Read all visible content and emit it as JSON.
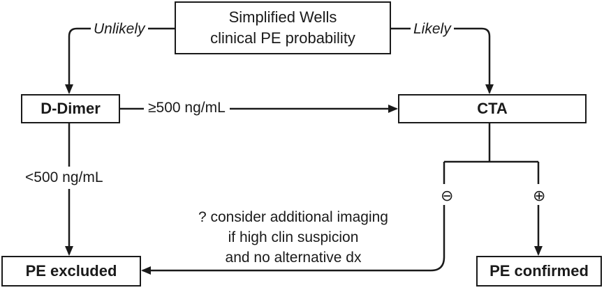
{
  "nodes": {
    "wells": {
      "line1": "Simplified Wells",
      "line2": "clinical PE probability"
    },
    "ddimer": "D-Dimer",
    "cta": "CTA",
    "pe_excluded": "PE excluded",
    "pe_confirmed": "PE confirmed"
  },
  "edges": {
    "unlikely": "Unlikely",
    "likely": "Likely",
    "ddimer_high": "≥500 ng/mL",
    "ddimer_low": "<500 ng/mL",
    "cta_negative": "⊖",
    "cta_positive": "⊕"
  },
  "note": {
    "line1": "? consider additional imaging",
    "line2": "if high clin suspicion",
    "line3": "and no alternative dx"
  },
  "colors": {
    "stroke": "#1a1a1a",
    "background": "#ffffff"
  }
}
